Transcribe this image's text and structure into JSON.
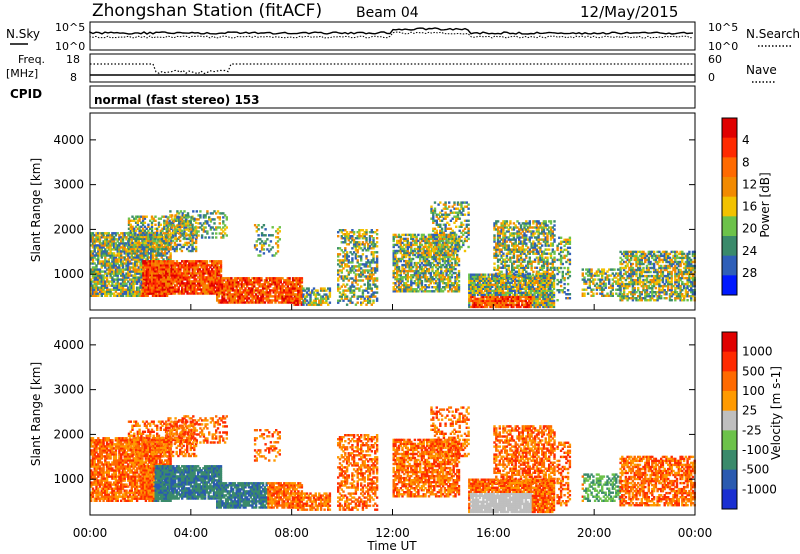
{
  "header": {
    "title": "Zhongshan Station (fitACF)",
    "beam": "Beam 04",
    "date": "12/May/2015"
  },
  "panels": {
    "nsky": {
      "label": "N.Sky",
      "tick_top": "10^5",
      "tick_bottom": "10^0"
    },
    "nsearch": {
      "label": "N.Search",
      "tick_top": "10^5",
      "tick_bottom": "10^0"
    },
    "freq": {
      "label_line1": "Freq.",
      "label_line2": "[MHz]",
      "tick_top": "18",
      "tick_bottom": "8"
    },
    "nave": {
      "label": "Nave",
      "tick_top": "60",
      "tick_bottom": "0"
    },
    "cpid": {
      "label": "CPID",
      "text": "normal (fast stereo) 153"
    }
  },
  "chart_data": [
    {
      "type": "heatmap",
      "name": "power",
      "ylabel": "Slant Range [km]",
      "ylim": [
        200,
        4600
      ],
      "yticks": [
        "1000",
        "2000",
        "3000",
        "4000"
      ],
      "colorbar": {
        "label": "Power [dB]",
        "ticks": [
          "4",
          "8",
          "12",
          "16",
          "20",
          "24",
          "28"
        ],
        "colors": [
          "#0019ff",
          "#2f5fb8",
          "#3a8a6b",
          "#6cc24a",
          "#f2c200",
          "#f28a00",
          "#ff6a00",
          "#ff2a00",
          "#e00000"
        ]
      }
    },
    {
      "type": "heatmap",
      "name": "velocity",
      "ylabel": "Slant Range [km]",
      "ylim": [
        200,
        4600
      ],
      "yticks": [
        "1000",
        "2000",
        "3000",
        "4000"
      ],
      "xlabel": "Time UT",
      "xticks": [
        "00:00",
        "04:00",
        "08:00",
        "12:00",
        "16:00",
        "20:00",
        "00:00"
      ],
      "colorbar": {
        "label": "Velocity [m s-1]",
        "ticks": [
          "1000",
          "500",
          "100",
          "25",
          "-25",
          "-100",
          "-500",
          "-1000"
        ],
        "colors": [
          "#1a2fd1",
          "#2a5ab0",
          "#3a8a6b",
          "#6cc24a",
          "#bfbfbf",
          "#ff9a00",
          "#ff6a00",
          "#ff2a00",
          "#e00000"
        ]
      }
    }
  ]
}
